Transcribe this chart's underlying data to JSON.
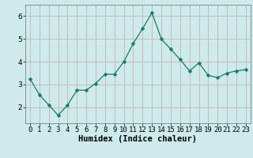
{
  "x": [
    0,
    1,
    2,
    3,
    4,
    5,
    6,
    7,
    8,
    9,
    10,
    11,
    12,
    13,
    14,
    15,
    16,
    17,
    18,
    19,
    20,
    21,
    22,
    23
  ],
  "y": [
    3.25,
    2.55,
    2.1,
    1.65,
    2.1,
    2.75,
    2.75,
    3.05,
    3.45,
    3.45,
    4.0,
    4.8,
    5.45,
    6.15,
    5.0,
    4.55,
    4.1,
    3.6,
    3.95,
    3.4,
    3.3,
    3.5,
    3.6,
    3.65
  ],
  "line_color": "#1a7a6a",
  "marker": "D",
  "marker_size": 2.5,
  "bg_color": "#ceeaea",
  "grid_color": "#c4a8a8",
  "xlabel": "Humidex (Indice chaleur)",
  "xlim": [
    -0.5,
    23.5
  ],
  "ylim": [
    1.3,
    6.5
  ],
  "yticks": [
    2,
    3,
    4,
    5,
    6
  ],
  "xticks": [
    0,
    1,
    2,
    3,
    4,
    5,
    6,
    7,
    8,
    9,
    10,
    11,
    12,
    13,
    14,
    15,
    16,
    17,
    18,
    19,
    20,
    21,
    22,
    23
  ],
  "xlabel_fontsize": 7.5,
  "tick_fontsize": 6.5
}
